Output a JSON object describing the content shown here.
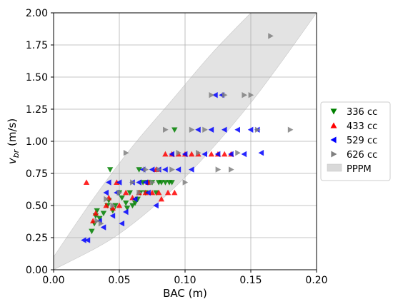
{
  "chart_data": {
    "type": "scatter",
    "title": "",
    "xlabel": "BAC (m)",
    "ylabel_main": "v",
    "ylabel_sub": "br",
    "ylabel_unit": " (m/s)",
    "xlim": [
      0.0,
      0.2
    ],
    "ylim": [
      0.0,
      2.0
    ],
    "x_ticks": [
      "0.00",
      "0.05",
      "0.10",
      "0.15",
      "0.20"
    ],
    "y_ticks": [
      "0.00",
      "0.25",
      "0.50",
      "0.75",
      "1.00",
      "1.25",
      "1.50",
      "1.75",
      "2.00"
    ],
    "x_tick_values": [
      0.0,
      0.05,
      0.1,
      0.15,
      0.2
    ],
    "y_tick_values": [
      0.0,
      0.25,
      0.5,
      0.75,
      1.0,
      1.25,
      1.5,
      1.75,
      2.0
    ],
    "grid": true,
    "legend_position": "right",
    "band": {
      "name": "PPPM",
      "color": "#d9d9d9",
      "lower": [
        [
          0.0,
          0.0
        ],
        [
          0.05,
          0.28
        ],
        [
          0.1,
          0.72
        ],
        [
          0.15,
          1.3
        ],
        [
          0.2,
          2.0
        ]
      ],
      "upper": [
        [
          0.0,
          0.1
        ],
        [
          0.03,
          0.55
        ],
        [
          0.06,
          0.96
        ],
        [
          0.09,
          1.32
        ],
        [
          0.12,
          1.68
        ],
        [
          0.15,
          2.0
        ]
      ]
    },
    "series": [
      {
        "name": "336 cc",
        "color": "#008000",
        "marker": "triangle-down",
        "points": [
          [
            0.029,
            0.3
          ],
          [
            0.031,
            0.36
          ],
          [
            0.032,
            0.42
          ],
          [
            0.033,
            0.46
          ],
          [
            0.035,
            0.4
          ],
          [
            0.038,
            0.44
          ],
          [
            0.041,
            0.5
          ],
          [
            0.042,
            0.54
          ],
          [
            0.043,
            0.78
          ],
          [
            0.045,
            0.46
          ],
          [
            0.047,
            0.5
          ],
          [
            0.05,
            0.6
          ],
          [
            0.052,
            0.56
          ],
          [
            0.055,
            0.52
          ],
          [
            0.056,
            0.48
          ],
          [
            0.058,
            0.6
          ],
          [
            0.06,
            0.5
          ],
          [
            0.062,
            0.52
          ],
          [
            0.064,
            0.55
          ],
          [
            0.065,
            0.78
          ],
          [
            0.066,
            0.6
          ],
          [
            0.068,
            0.68
          ],
          [
            0.07,
            0.6
          ],
          [
            0.072,
            0.68
          ],
          [
            0.075,
            0.68
          ],
          [
            0.078,
            0.6
          ],
          [
            0.08,
            0.68
          ],
          [
            0.082,
            0.68
          ],
          [
            0.085,
            0.68
          ],
          [
            0.088,
            0.68
          ],
          [
            0.09,
            0.68
          ],
          [
            0.092,
            1.09
          ]
        ]
      },
      {
        "name": "433 cc",
        "color": "#ff0000",
        "marker": "triangle-up",
        "points": [
          [
            0.025,
            0.68
          ],
          [
            0.03,
            0.38
          ],
          [
            0.032,
            0.44
          ],
          [
            0.04,
            0.5
          ],
          [
            0.042,
            0.56
          ],
          [
            0.045,
            0.48
          ],
          [
            0.048,
            0.68
          ],
          [
            0.05,
            0.5
          ],
          [
            0.055,
            0.6
          ],
          [
            0.06,
            0.56
          ],
          [
            0.065,
            0.6
          ],
          [
            0.07,
            0.6
          ],
          [
            0.072,
            0.68
          ],
          [
            0.075,
            0.6
          ],
          [
            0.078,
            0.78
          ],
          [
            0.08,
            0.6
          ],
          [
            0.082,
            0.55
          ],
          [
            0.085,
            0.9
          ],
          [
            0.087,
            0.6
          ],
          [
            0.09,
            0.9
          ],
          [
            0.092,
            0.6
          ],
          [
            0.095,
            0.9
          ],
          [
            0.1,
            0.9
          ],
          [
            0.105,
            0.9
          ],
          [
            0.11,
            0.9
          ],
          [
            0.12,
            0.9
          ],
          [
            0.125,
            0.9
          ],
          [
            0.13,
            0.9
          ],
          [
            0.135,
            0.9
          ]
        ]
      },
      {
        "name": "529 cc",
        "color": "#0000ff",
        "marker": "triangle-left",
        "points": [
          [
            0.023,
            0.23
          ],
          [
            0.026,
            0.23
          ],
          [
            0.035,
            0.38
          ],
          [
            0.038,
            0.33
          ],
          [
            0.04,
            0.6
          ],
          [
            0.042,
            0.68
          ],
          [
            0.045,
            0.42
          ],
          [
            0.048,
            0.6
          ],
          [
            0.05,
            0.68
          ],
          [
            0.052,
            0.36
          ],
          [
            0.055,
            0.45
          ],
          [
            0.06,
            0.68
          ],
          [
            0.062,
            0.55
          ],
          [
            0.065,
            0.68
          ],
          [
            0.068,
            0.78
          ],
          [
            0.07,
            0.68
          ],
          [
            0.072,
            0.6
          ],
          [
            0.075,
            0.78
          ],
          [
            0.078,
            0.5
          ],
          [
            0.08,
            0.78
          ],
          [
            0.085,
            0.78
          ],
          [
            0.09,
            0.9
          ],
          [
            0.095,
            0.78
          ],
          [
            0.1,
            0.9
          ],
          [
            0.105,
            0.78
          ],
          [
            0.11,
            1.09
          ],
          [
            0.115,
            0.9
          ],
          [
            0.12,
            1.09
          ],
          [
            0.123,
            1.36
          ],
          [
            0.125,
            0.9
          ],
          [
            0.128,
            1.36
          ],
          [
            0.13,
            1.09
          ],
          [
            0.135,
            0.9
          ],
          [
            0.14,
            1.09
          ],
          [
            0.145,
            0.9
          ],
          [
            0.15,
            1.09
          ],
          [
            0.155,
            1.09
          ],
          [
            0.158,
            0.91
          ]
        ]
      },
      {
        "name": "626 cc",
        "color": "#808080",
        "marker": "triangle-right",
        "points": [
          [
            0.033,
            0.38
          ],
          [
            0.036,
            0.36
          ],
          [
            0.04,
            0.55
          ],
          [
            0.045,
            0.5
          ],
          [
            0.05,
            0.6
          ],
          [
            0.055,
            0.91
          ],
          [
            0.06,
            0.68
          ],
          [
            0.065,
            0.6
          ],
          [
            0.07,
            0.78
          ],
          [
            0.075,
            0.68
          ],
          [
            0.08,
            0.78
          ],
          [
            0.085,
            1.09
          ],
          [
            0.09,
            0.78
          ],
          [
            0.095,
            0.91
          ],
          [
            0.1,
            0.68
          ],
          [
            0.105,
            1.09
          ],
          [
            0.11,
            0.91
          ],
          [
            0.115,
            1.09
          ],
          [
            0.12,
            1.36
          ],
          [
            0.125,
            0.78
          ],
          [
            0.13,
            1.36
          ],
          [
            0.135,
            0.78
          ],
          [
            0.14,
            0.91
          ],
          [
            0.145,
            1.36
          ],
          [
            0.15,
            1.36
          ],
          [
            0.155,
            1.09
          ],
          [
            0.165,
            1.82
          ],
          [
            0.18,
            1.09
          ]
        ]
      }
    ]
  }
}
